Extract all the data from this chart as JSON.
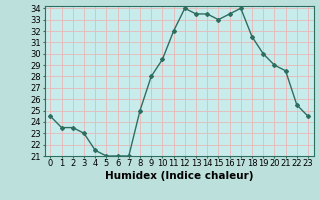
{
  "x": [
    0,
    1,
    2,
    3,
    4,
    5,
    6,
    7,
    8,
    9,
    10,
    11,
    12,
    13,
    14,
    15,
    16,
    17,
    18,
    19,
    20,
    21,
    22,
    23
  ],
  "y": [
    24.5,
    23.5,
    23.5,
    23.0,
    21.5,
    21.0,
    21.0,
    21.0,
    25.0,
    28.0,
    29.5,
    32.0,
    34.0,
    33.5,
    33.5,
    33.0,
    33.5,
    34.0,
    31.5,
    30.0,
    29.0,
    28.5,
    25.5,
    24.5
  ],
  "xlabel": "Humidex (Indice chaleur)",
  "ylim": [
    21,
    34
  ],
  "xlim": [
    -0.5,
    23.5
  ],
  "yticks": [
    21,
    22,
    23,
    24,
    25,
    26,
    27,
    28,
    29,
    30,
    31,
    32,
    33,
    34
  ],
  "xtick_labels": [
    "0",
    "1",
    "2",
    "3",
    "4",
    "5",
    "6",
    "7",
    "8",
    "9",
    "10",
    "11",
    "12",
    "13",
    "14",
    "15",
    "16",
    "17",
    "18",
    "19",
    "20",
    "21",
    "22",
    "23"
  ],
  "line_color": "#2e6e60",
  "marker": "D",
  "marker_size": 2.0,
  "bg_color": "#bce0dc",
  "plot_bg_color": "#c8ecec",
  "grid_color": "#e8b8b8",
  "line_width": 1.0,
  "xlabel_fontsize": 7.5,
  "tick_fontsize": 6.0
}
